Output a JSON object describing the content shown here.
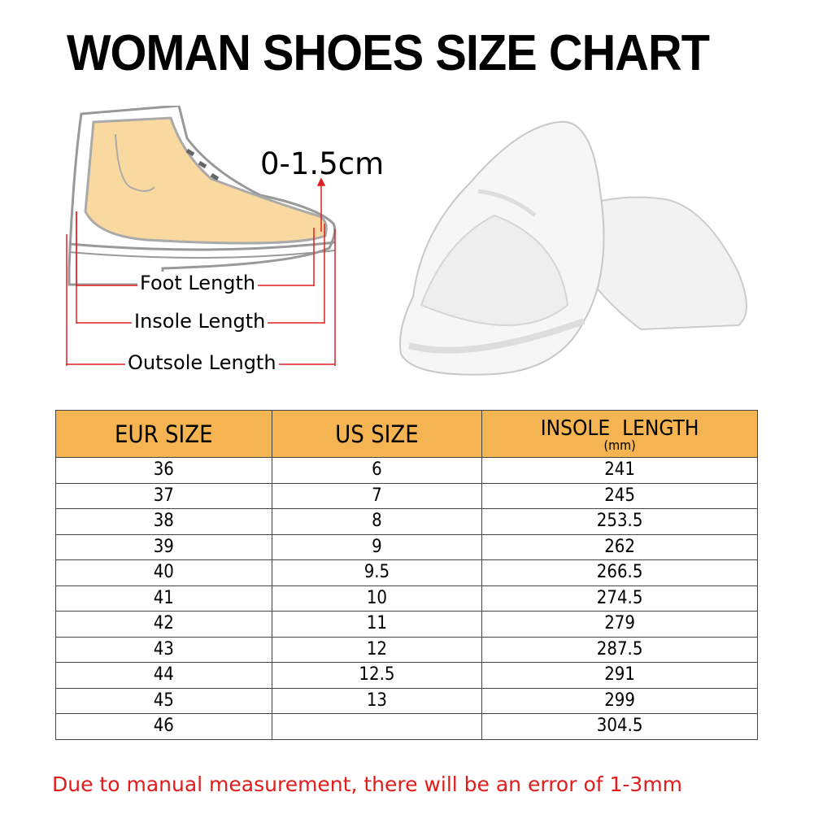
{
  "title": "WOMAN SHOES SIZE CHART",
  "diagram": {
    "gap_label": "0-1.5cm",
    "foot_length": "Foot Length",
    "insole_length": "Insole Length",
    "outsole_length": "Outsole Length",
    "arrow_color": "#E02020",
    "foot_color": "#F9D9A0"
  },
  "table": {
    "header_color": "#F5B452",
    "headers": {
      "eur": "EUR SIZE",
      "us": "US SIZE",
      "insole": "INSOLE  LENGTH",
      "insole_unit": "(mm)"
    },
    "rows": [
      {
        "eur": "36",
        "us": "6",
        "insole": "241"
      },
      {
        "eur": "37",
        "us": "7",
        "insole": "245"
      },
      {
        "eur": "38",
        "us": "8",
        "insole": "253.5"
      },
      {
        "eur": "39",
        "us": "9",
        "insole": "262"
      },
      {
        "eur": "40",
        "us": "9.5",
        "insole": "266.5"
      },
      {
        "eur": "41",
        "us": "10",
        "insole": "274.5"
      },
      {
        "eur": "42",
        "us": "11",
        "insole": "279"
      },
      {
        "eur": "43",
        "us": "12",
        "insole": "287.5"
      },
      {
        "eur": "44",
        "us": "12.5",
        "insole": "291"
      },
      {
        "eur": "45",
        "us": "13",
        "insole": "299"
      },
      {
        "eur": "46",
        "us": "",
        "insole": "304.5"
      }
    ]
  },
  "note": "Due to manual measurement, there will be an error of 1-3mm"
}
